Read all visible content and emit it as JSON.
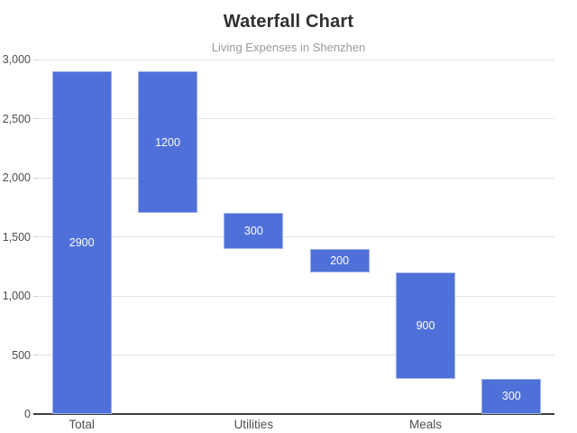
{
  "chart_data": {
    "type": "bar",
    "subtype": "waterfall",
    "title": "Waterfall Chart",
    "subtitle": "Living Expenses in Shenzhen",
    "bar_color": "#4f70d9",
    "value_label_color": "#ffffff",
    "grid": true,
    "legend": "none",
    "y_axis": {
      "min": 0,
      "max": 3000,
      "tick_interval": 500,
      "ticks": [
        0,
        500,
        1000,
        1500,
        2000,
        2500,
        3000
      ],
      "tick_labels": [
        "0",
        "500",
        "1,000",
        "1,500",
        "2,000",
        "2,500",
        "3,000"
      ]
    },
    "x_axis": {
      "visible_category_labels": [
        "Total",
        "Utilities",
        "Meals"
      ]
    },
    "bars": [
      {
        "axis_label": "Total",
        "from": 0,
        "to": 2900,
        "value_label": "2900"
      },
      {
        "axis_label": "",
        "from": 1700,
        "to": 2900,
        "value_label": "1200"
      },
      {
        "axis_label": "Utilities",
        "from": 1400,
        "to": 1700,
        "value_label": "300"
      },
      {
        "axis_label": "",
        "from": 1200,
        "to": 1400,
        "value_label": "200"
      },
      {
        "axis_label": "Meals",
        "from": 300,
        "to": 1200,
        "value_label": "900"
      },
      {
        "axis_label": "",
        "from": 0,
        "to": 300,
        "value_label": "300"
      }
    ]
  }
}
